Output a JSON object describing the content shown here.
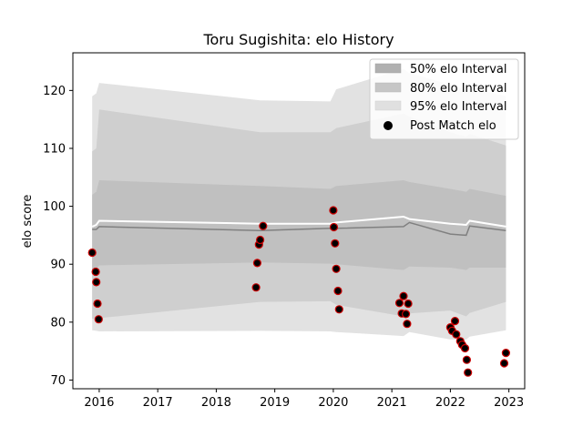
{
  "chart_data": {
    "type": "line",
    "title": "Toru Sugishita: elo History",
    "xlabel": "",
    "ylabel": "elo score",
    "xlim": [
      2015.55,
      2023.27
    ],
    "ylim": [
      68.5,
      126.5
    ],
    "x_ticks": [
      2016,
      2017,
      2018,
      2019,
      2020,
      2021,
      2022,
      2023
    ],
    "x_tick_labels": [
      "2016",
      "2017",
      "2018",
      "2019",
      "2020",
      "2021",
      "2022",
      "2023"
    ],
    "y_ticks": [
      70,
      80,
      90,
      100,
      110,
      120
    ],
    "y_tick_labels": [
      "70",
      "80",
      "90",
      "100",
      "110",
      "120"
    ],
    "grid": false,
    "legend_position": "top-right",
    "legend": [
      {
        "label": "50% elo Interval",
        "color": "#b0b0b0",
        "kind": "patch"
      },
      {
        "label": "80% elo Interval",
        "color": "#c6c6c6",
        "kind": "patch"
      },
      {
        "label": "95% elo Interval",
        "color": "#e0e0e0",
        "kind": "patch"
      },
      {
        "label": "Post Match elo",
        "color": "#000000",
        "kind": "marker"
      }
    ],
    "colors": {
      "band95": "#e2e2e2",
      "band80": "#cfcfcf",
      "band50": "#c0c0c0",
      "mean_line": "#ffffff",
      "median_line": "#808080",
      "point_fill": "#000000",
      "point_edge": "#cc0000"
    },
    "bands": {
      "x": [
        2015.88,
        2015.95,
        2016.0,
        2018.75,
        2019.95,
        2020.05,
        2021.2,
        2021.3,
        2022.0,
        2022.27,
        2022.33,
        2022.95
      ],
      "band95_upper": [
        119.0,
        119.5,
        121.3,
        118.3,
        118.1,
        120.2,
        123.7,
        123.0,
        121.0,
        120.0,
        120.5,
        119.0
      ],
      "band95_lower": [
        78.6,
        78.5,
        78.4,
        78.5,
        78.4,
        78.3,
        77.6,
        78.3,
        77.0,
        77.0,
        77.5,
        78.6
      ],
      "band80_upper": [
        109.5,
        110.0,
        116.7,
        112.8,
        112.8,
        113.5,
        116.0,
        115.5,
        112.8,
        112.0,
        112.5,
        110.5
      ],
      "band80_lower": [
        80.6,
        80.6,
        80.7,
        83.5,
        83.6,
        83.0,
        81.0,
        81.5,
        82.0,
        81.0,
        81.6,
        83.5
      ],
      "band50_upper": [
        102.0,
        102.5,
        104.5,
        103.5,
        103.0,
        103.5,
        104.5,
        104.2,
        103.0,
        102.5,
        103.0,
        101.8
      ],
      "band50_lower": [
        89.0,
        89.2,
        89.8,
        90.3,
        90.1,
        90.0,
        89.0,
        89.6,
        89.4,
        89.0,
        89.4,
        89.4
      ],
      "mean": [
        96.5,
        96.8,
        97.5,
        97.0,
        97.0,
        97.2,
        98.2,
        97.8,
        97.0,
        96.8,
        97.5,
        96.5
      ],
      "median": [
        96.0,
        96.0,
        96.5,
        95.8,
        96.2,
        96.2,
        96.5,
        97.2,
        95.2,
        95.0,
        96.6,
        95.8
      ]
    },
    "series": [
      {
        "name": "Post Match elo",
        "points": [
          [
            2015.88,
            92.0
          ],
          [
            2015.94,
            88.7
          ],
          [
            2015.95,
            86.9
          ],
          [
            2015.97,
            83.2
          ],
          [
            2015.99,
            80.5
          ],
          [
            2018.68,
            86.0
          ],
          [
            2018.7,
            90.2
          ],
          [
            2018.73,
            93.4
          ],
          [
            2018.75,
            94.2
          ],
          [
            2018.8,
            96.6
          ],
          [
            2020.0,
            99.3
          ],
          [
            2020.01,
            96.4
          ],
          [
            2020.03,
            93.6
          ],
          [
            2020.05,
            89.2
          ],
          [
            2020.08,
            85.4
          ],
          [
            2020.1,
            82.2
          ],
          [
            2021.13,
            83.3
          ],
          [
            2021.17,
            81.5
          ],
          [
            2021.2,
            84.5
          ],
          [
            2021.24,
            81.4
          ],
          [
            2021.26,
            79.7
          ],
          [
            2021.28,
            83.2
          ],
          [
            2022.0,
            79.1
          ],
          [
            2022.03,
            78.5
          ],
          [
            2022.08,
            80.2
          ],
          [
            2022.1,
            77.9
          ],
          [
            2022.17,
            76.7
          ],
          [
            2022.2,
            76.1
          ],
          [
            2022.25,
            75.5
          ],
          [
            2022.28,
            73.5
          ],
          [
            2022.3,
            71.3
          ],
          [
            2022.92,
            72.9
          ],
          [
            2022.95,
            74.7
          ]
        ]
      }
    ]
  }
}
